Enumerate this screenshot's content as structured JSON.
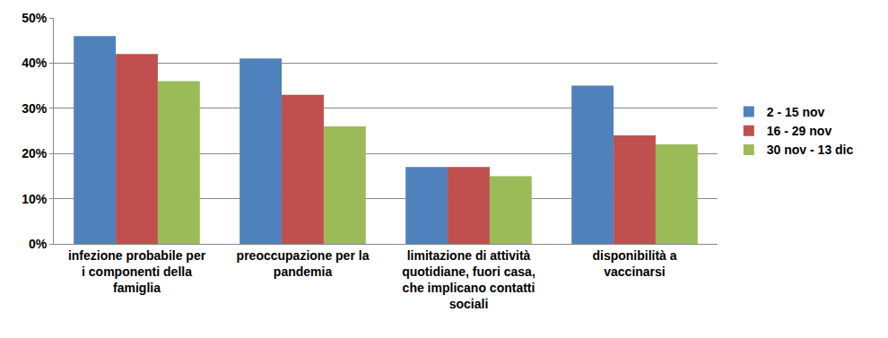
{
  "chart_data": {
    "type": "bar",
    "categories": [
      "infezione probabile per i componenti della famiglia",
      "preoccupazione per la pandemia",
      "limitazione di attività quotidiane, fuori casa, che implicano contatti sociali",
      "disponibilità a vaccinarsi"
    ],
    "series": [
      {
        "name": "2 - 15 nov",
        "color": "#4f81bd",
        "values": [
          46,
          41,
          17,
          35
        ]
      },
      {
        "name": "16 - 29 nov",
        "color": "#c0504d",
        "values": [
          42,
          33,
          17,
          24
        ]
      },
      {
        "name": "30 nov - 13 dic",
        "color": "#9bbb59",
        "values": [
          36,
          26,
          15,
          22
        ]
      }
    ],
    "ylim": [
      0,
      50
    ],
    "yticks": [
      {
        "value": 0,
        "label": "0%"
      },
      {
        "value": 10,
        "label": "10%"
      },
      {
        "value": 20,
        "label": "20%"
      },
      {
        "value": 30,
        "label": "30%"
      },
      {
        "value": 40,
        "label": "40%"
      },
      {
        "value": 50,
        "label": "50%"
      }
    ],
    "grid": true,
    "legend": "right"
  }
}
